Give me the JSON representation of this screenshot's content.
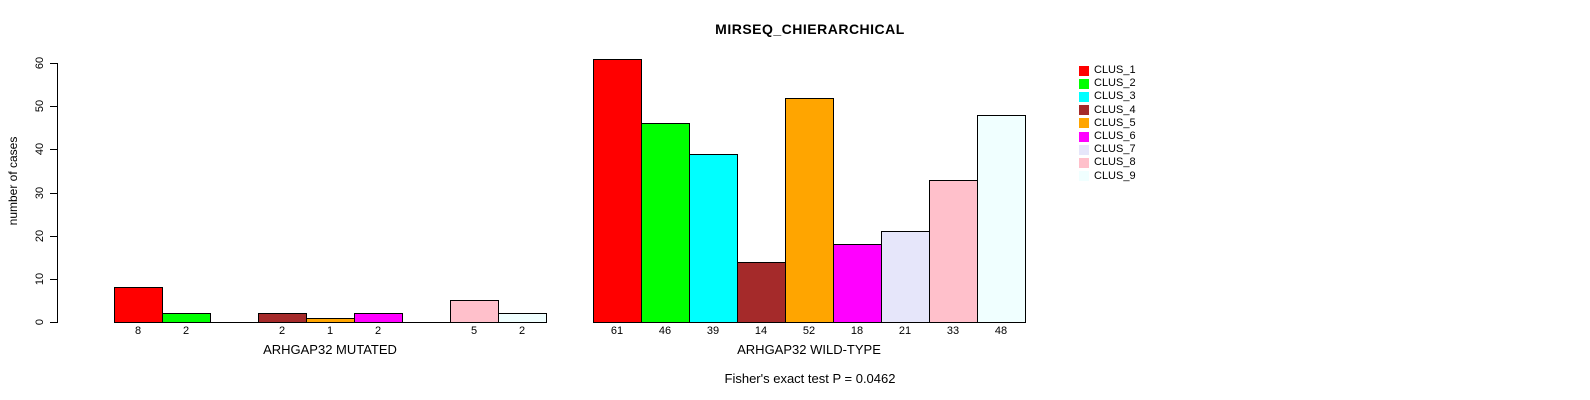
{
  "chart_data": {
    "type": "bar",
    "title": "MIRSEQ_CHIERARCHICAL",
    "ylabel": "number of cases",
    "xlabel": "",
    "ylim": [
      0,
      60
    ],
    "yticks": [
      0,
      10,
      20,
      30,
      40,
      50,
      60
    ],
    "grid": false,
    "legend_position": "right",
    "categories": [
      "CLUS_1",
      "CLUS_2",
      "CLUS_3",
      "CLUS_4",
      "CLUS_5",
      "CLUS_6",
      "CLUS_7",
      "CLUS_8",
      "CLUS_9"
    ],
    "colors": [
      "#FF0000",
      "#00FF00",
      "#00FFFF",
      "#A52A2A",
      "#FFA500",
      "#FF00FF",
      "#E6E6FA",
      "#FFC0CB",
      "#F0FFFF"
    ],
    "series": [
      {
        "name": "ARHGAP32 MUTATED",
        "values": [
          8,
          2,
          0,
          2,
          1,
          2,
          0,
          5,
          2
        ]
      },
      {
        "name": "ARHGAP32 WILD-TYPE",
        "values": [
          61,
          46,
          39,
          14,
          52,
          18,
          21,
          33,
          48
        ]
      }
    ],
    "bar_value_labels": {
      "ARHGAP32 MUTATED": [
        "8",
        "2",
        "",
        "2",
        "1",
        "2",
        "",
        "5",
        "2"
      ],
      "ARHGAP32 WILD-TYPE": [
        "61",
        "46",
        "39",
        "14",
        "52",
        "18",
        "21",
        "33",
        "48"
      ]
    },
    "annotation": "Fisher's exact test P = 0.0462"
  }
}
